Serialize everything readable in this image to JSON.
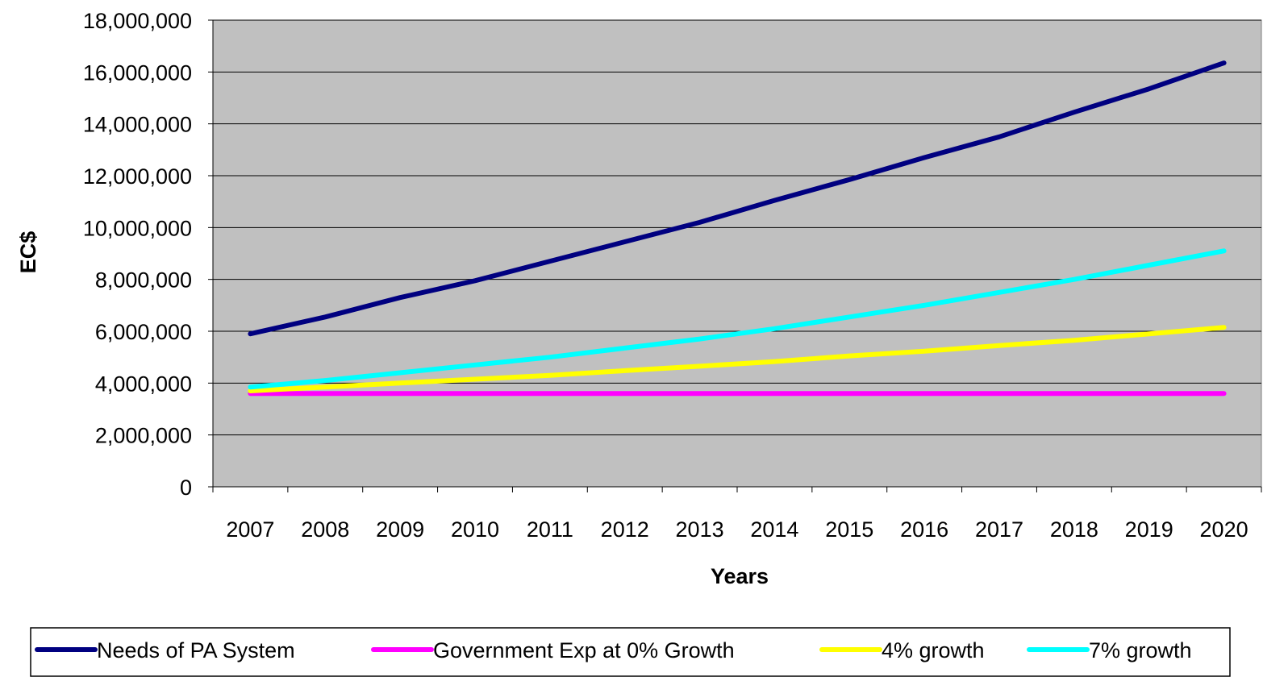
{
  "chart_data": {
    "type": "line",
    "title": "",
    "xlabel": "Years",
    "ylabel": "EC$",
    "ylim": [
      0,
      18000000
    ],
    "yticks": [
      0,
      2000000,
      4000000,
      6000000,
      8000000,
      10000000,
      12000000,
      14000000,
      16000000,
      18000000
    ],
    "ytick_labels": [
      "0",
      "2,000,000",
      "4,000,000",
      "6,000,000",
      "8,000,000",
      "10,000,000",
      "12,000,000",
      "14,000,000",
      "16,000,000",
      "18,000,000"
    ],
    "categories": [
      "2007",
      "2008",
      "2009",
      "2010",
      "2011",
      "2012",
      "2013",
      "2014",
      "2015",
      "2016",
      "2017",
      "2018",
      "2019",
      "2020"
    ],
    "grid": true,
    "legend_position": "bottom",
    "plot_background": "#c0c0c0",
    "series": [
      {
        "name": "Needs of PA System",
        "color": "#000080",
        "values": [
          5900000,
          6550000,
          7300000,
          7950000,
          8700000,
          9450000,
          10200000,
          11050000,
          11850000,
          12700000,
          13500000,
          14450000,
          15350000,
          16350000
        ]
      },
      {
        "name": "Government Exp at 0% Growth",
        "color": "#ff00ff",
        "values": [
          3600000,
          3600000,
          3600000,
          3600000,
          3600000,
          3600000,
          3600000,
          3600000,
          3600000,
          3600000,
          3600000,
          3600000,
          3600000,
          3600000
        ]
      },
      {
        "name": "4% growth",
        "color": "#ffff00",
        "values": [
          3700000,
          3850000,
          4000000,
          4150000,
          4300000,
          4480000,
          4650000,
          4830000,
          5050000,
          5230000,
          5450000,
          5650000,
          5900000,
          6150000
        ]
      },
      {
        "name": "7% growth",
        "color": "#00ffff",
        "values": [
          3850000,
          4100000,
          4400000,
          4700000,
          5000000,
          5350000,
          5700000,
          6100000,
          6550000,
          7000000,
          7500000,
          8000000,
          8550000,
          9100000
        ]
      }
    ]
  }
}
